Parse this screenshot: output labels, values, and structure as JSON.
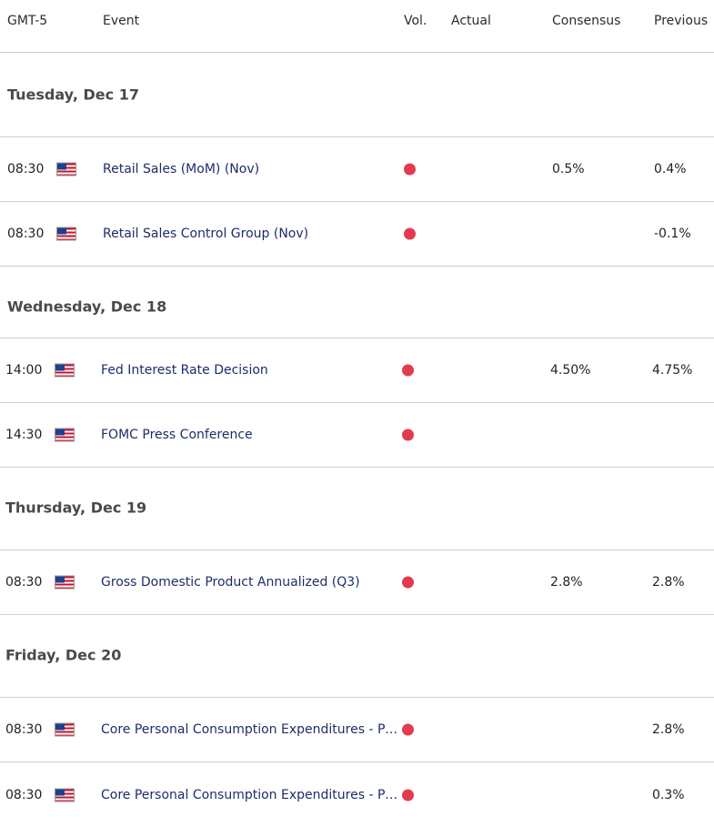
{
  "header": {
    "timezone": "GMT-5",
    "event": "Event",
    "vol": "Vol.",
    "actual": "Actual",
    "consensus": "Consensus",
    "previous": "Previous"
  },
  "days": [
    {
      "label": "Tuesday, Dec 17"
    },
    {
      "label": "Wednesday, Dec 18"
    },
    {
      "label": "Thursday, Dec 19"
    },
    {
      "label": "Friday, Dec 20"
    }
  ],
  "rows": [
    {
      "time": "08:30",
      "country": "us-flag-icon",
      "event": "Retail Sales (MoM) (Nov)",
      "volatility": "high",
      "actual": "",
      "consensus": "0.5%",
      "previous": "0.4%"
    },
    {
      "time": "08:30",
      "country": "us-flag-icon",
      "event": "Retail Sales Control Group (Nov)",
      "volatility": "high",
      "actual": "",
      "consensus": "",
      "previous": "-0.1%"
    },
    {
      "time": "14:00",
      "country": "us-flag-icon",
      "event": "Fed Interest Rate Decision",
      "volatility": "high",
      "actual": "",
      "consensus": "4.50%",
      "previous": "4.75%"
    },
    {
      "time": "14:30",
      "country": "us-flag-icon",
      "event": "FOMC Press Conference",
      "volatility": "high",
      "actual": "",
      "consensus": "",
      "previous": ""
    },
    {
      "time": "08:30",
      "country": "us-flag-icon",
      "event": "Gross Domestic Product Annualized (Q3)",
      "volatility": "high",
      "actual": "",
      "consensus": "2.8%",
      "previous": "2.8%"
    },
    {
      "time": "08:30",
      "country": "us-flag-icon",
      "event": "Core Personal Consumption Expenditures - Pri…",
      "volatility": "high",
      "actual": "",
      "consensus": "",
      "previous": "2.8%"
    },
    {
      "time": "08:30",
      "country": "us-flag-icon",
      "event": "Core Personal Consumption Expenditures - Pri…",
      "volatility": "high",
      "actual": "",
      "consensus": "",
      "previous": "0.3%"
    }
  ],
  "colors": {
    "high_volatility": "#e23b4f",
    "event_link": "#1e2c6b",
    "divider": "#cfcfcf"
  }
}
